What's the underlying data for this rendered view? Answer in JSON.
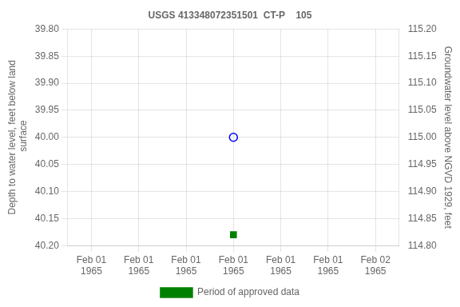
{
  "chart_data": {
    "type": "scatter",
    "title": "USGS 413348072351501  CT-P    105",
    "y_label": "Depth to water level, feet below land\n surface",
    "y2_label": "Groundwater level above NGVD 1929, feet",
    "categories": [
      "Feb 01\n1965",
      "Feb 01\n1965",
      "Feb 01\n1965",
      "Feb 01\n1965",
      "Feb 01\n1965",
      "Feb 01\n1965",
      "Feb 02\n1965"
    ],
    "series": [
      {
        "color": "#0000ff",
        "marker": "open-circle",
        "values": [
          null,
          null,
          null,
          40.0,
          null,
          null,
          null
        ]
      },
      {
        "name": "Period of approved data",
        "color": "#008000",
        "marker": "square",
        "values": [
          null,
          null,
          null,
          40.18,
          null,
          null,
          null
        ]
      }
    ],
    "ylim": [
      40.2,
      39.8
    ],
    "yticks": [
      {
        "value": 39.8,
        "label": "39.80"
      },
      {
        "value": 39.85,
        "label": "39.85"
      },
      {
        "value": 39.9,
        "label": "39.90"
      },
      {
        "value": 39.95,
        "label": "39.95"
      },
      {
        "value": 40.0,
        "label": "40.00"
      },
      {
        "value": 40.05,
        "label": "40.05"
      },
      {
        "value": 40.1,
        "label": "40.10"
      },
      {
        "value": 40.15,
        "label": "40.15"
      },
      {
        "value": 40.2,
        "label": "40.20"
      }
    ],
    "y2lim": [
      114.8,
      115.2
    ],
    "y2ticks": [
      {
        "value": 114.8,
        "label": "114.80"
      },
      {
        "value": 114.85,
        "label": "114.85"
      },
      {
        "value": 114.9,
        "label": "114.90"
      },
      {
        "value": 114.95,
        "label": "114.95"
      },
      {
        "value": 115.0,
        "label": "115.00"
      },
      {
        "value": 115.05,
        "label": "115.05"
      },
      {
        "value": 115.1,
        "label": "115.10"
      },
      {
        "value": 115.15,
        "label": "115.15"
      },
      {
        "value": 115.2,
        "label": "115.20"
      }
    ],
    "grid": true,
    "legend": "bottom"
  }
}
